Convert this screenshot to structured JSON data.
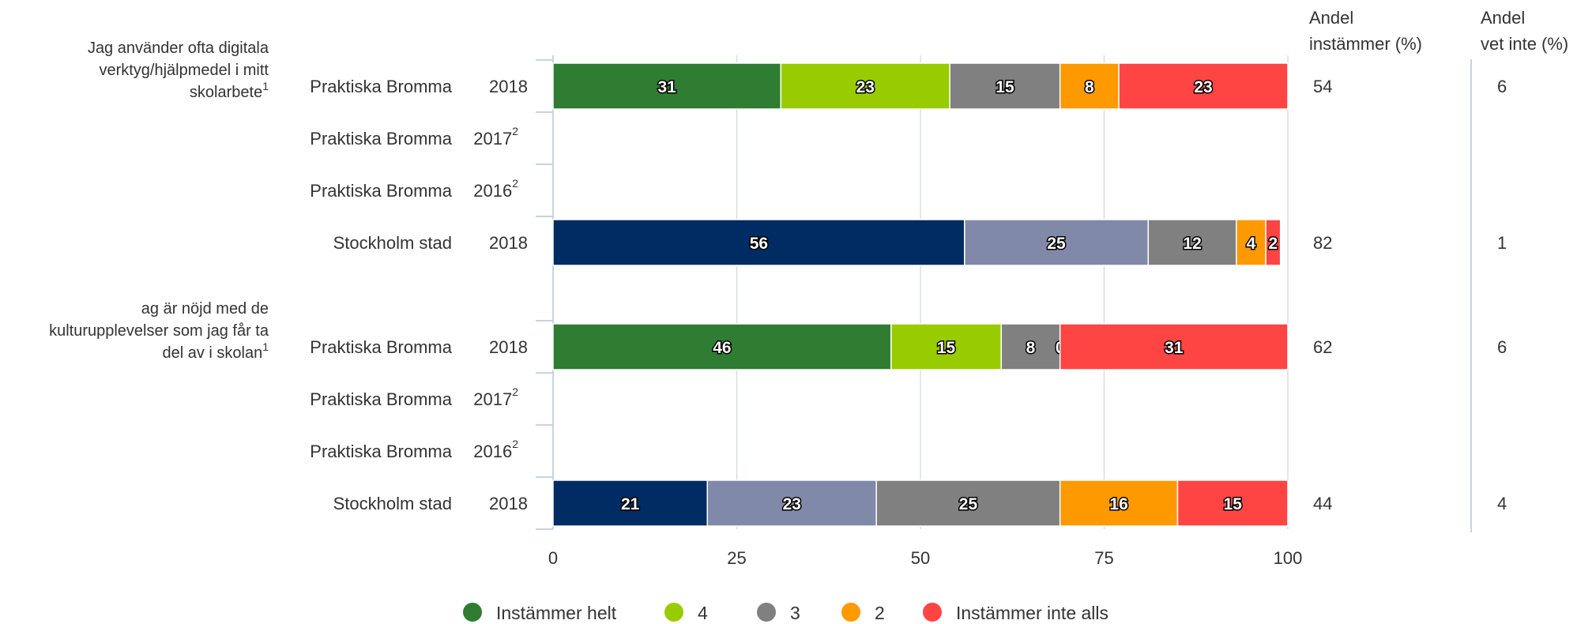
{
  "chart_data": {
    "type": "bar",
    "orientation": "horizontal",
    "stacked": true,
    "xlim": [
      0,
      100
    ],
    "xticks": [
      "0",
      "25",
      "50",
      "75",
      "100"
    ],
    "series": [
      {
        "name": "Instämmer helt",
        "color": "#2e7d32"
      },
      {
        "name": "4",
        "color": "#99cc00"
      },
      {
        "name": "3",
        "color": "#808080"
      },
      {
        "name": "2",
        "color": "#ff9900"
      },
      {
        "name": "Instämmer inte alls",
        "color": "#ff4444"
      }
    ],
    "stockholm_colors": [
      "#002b63",
      "#8089a8",
      "#808080",
      "#ff9900",
      "#ff4444"
    ],
    "columns": {
      "agree_header": [
        "Andel",
        "instämmer (%)"
      ],
      "dontknow_header": [
        "Andel",
        "vet inte (%)"
      ]
    },
    "groups": [
      {
        "question": [
          "Jag använder ofta digitala",
          "verktyg/hjälpmedel i mitt",
          "skolarbete"
        ],
        "question_footnote": "1",
        "rows": [
          {
            "name": "Praktiska Bromma",
            "year": "2018",
            "year_footnote": "",
            "values": [
              31,
              23,
              15,
              8,
              23
            ],
            "agree": "54",
            "dont_know": "6",
            "palette": "school"
          },
          {
            "name": "Praktiska Bromma",
            "year": "2017",
            "year_footnote": "2",
            "values": [],
            "agree": "",
            "dont_know": "",
            "palette": "school"
          },
          {
            "name": "Praktiska Bromma",
            "year": "2016",
            "year_footnote": "2",
            "values": [],
            "agree": "",
            "dont_know": "",
            "palette": "school"
          },
          {
            "name": "Stockholm stad",
            "year": "2018",
            "year_footnote": "",
            "values": [
              56,
              25,
              12,
              4,
              2
            ],
            "agree": "82",
            "dont_know": "1",
            "palette": "stockholm"
          }
        ]
      },
      {
        "question": [
          "ag är nöjd med de",
          "kulturupplevelser som jag får ta",
          "del av i skolan"
        ],
        "question_footnote": "1",
        "rows": [
          {
            "name": "Praktiska Bromma",
            "year": "2018",
            "year_footnote": "",
            "values": [
              46,
              15,
              8,
              0,
              31
            ],
            "agree": "62",
            "dont_know": "6",
            "palette": "school"
          },
          {
            "name": "Praktiska Bromma",
            "year": "2017",
            "year_footnote": "2",
            "values": [],
            "agree": "",
            "dont_know": "",
            "palette": "school"
          },
          {
            "name": "Praktiska Bromma",
            "year": "2016",
            "year_footnote": "2",
            "values": [],
            "agree": "",
            "dont_know": "",
            "palette": "school"
          },
          {
            "name": "Stockholm stad",
            "year": "2018",
            "year_footnote": "",
            "values": [
              21,
              23,
              25,
              16,
              15
            ],
            "agree": "44",
            "dont_know": "4",
            "palette": "stockholm"
          }
        ]
      }
    ],
    "legend_position": "bottom",
    "grid": true
  }
}
